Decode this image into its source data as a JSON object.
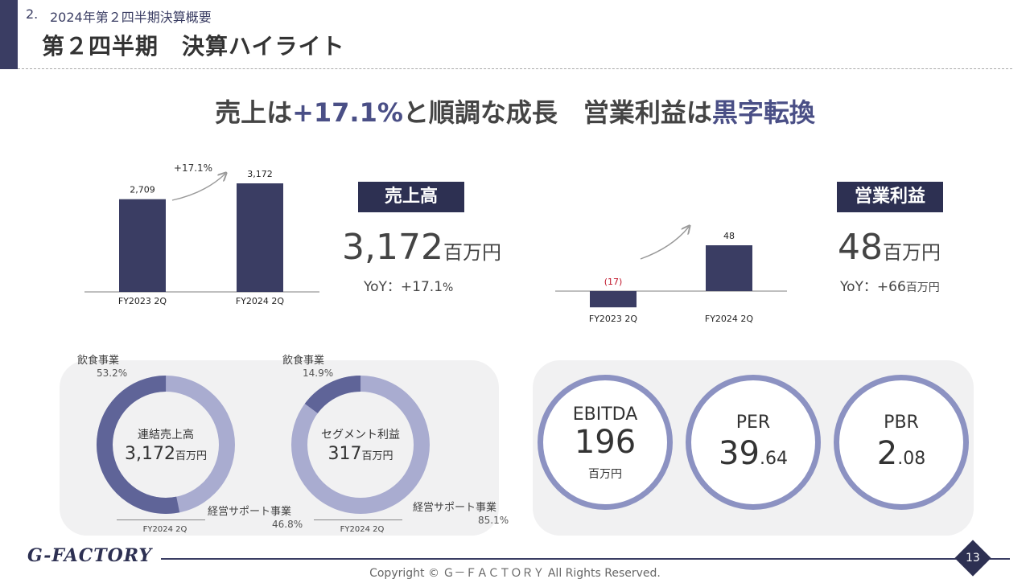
{
  "header": {
    "section_number": "2.",
    "section_title": "2024年第２四半期決算概要",
    "page_title": "第２四半期　決算ハイライト"
  },
  "headline": {
    "part1": "売上は",
    "highlight1": "+17.1%",
    "part2": "と順調な成長　営業利益は",
    "highlight2": "黒字転換"
  },
  "sales": {
    "tag": "売上高",
    "value": "3,172",
    "unit": "百万円",
    "yoy_label": "YoY：",
    "yoy_value": "+17.1",
    "yoy_unit": "%"
  },
  "operating_profit": {
    "tag": "営業利益",
    "value": "48",
    "unit": "百万円",
    "yoy_label": "YoY：",
    "yoy_value": "+66",
    "yoy_unit": "百万円"
  },
  "chart_data": [
    {
      "type": "bar",
      "categories": [
        "FY2023 2Q",
        "FY2024 2Q"
      ],
      "values": [
        2709,
        3172
      ],
      "value_labels": [
        "2,709",
        "3,172"
      ],
      "annotation": "+17.1%",
      "ylim": [
        0,
        3500
      ],
      "color": "#3a3d63"
    },
    {
      "type": "bar",
      "categories": [
        "FY2023 2Q",
        "FY2024 2Q"
      ],
      "values": [
        -17,
        48
      ],
      "value_labels": [
        "(17)",
        "48"
      ],
      "ylim": [
        -17,
        48
      ],
      "color": "#3a3d63",
      "negative_label_color": "#c0152a"
    },
    {
      "type": "pie",
      "categories": [
        "飲食事業",
        "経営サポート事業"
      ],
      "values": [
        53.2,
        46.8
      ],
      "colors": [
        "#5f6498",
        "#a9acd0"
      ],
      "center_label": "連結売上高",
      "center_value": "3,172",
      "center_unit": "百万円",
      "caption": "FY2024 2Q"
    },
    {
      "type": "pie",
      "categories": [
        "飲食事業",
        "経営サポート事業"
      ],
      "values": [
        14.9,
        85.1
      ],
      "colors": [
        "#5f6498",
        "#a9acd0"
      ],
      "center_label": "セグメント利益",
      "center_value": "317",
      "center_unit": "百万円",
      "caption": "FY2024 2Q"
    }
  ],
  "donut1": {
    "food_label": "飲食事業",
    "food_pct": "53.2%",
    "support_label": "経営サポート事業",
    "support_pct": "46.8%"
  },
  "donut2": {
    "food_label": "飲食事業",
    "food_pct": "14.9%",
    "support_label": "経営サポート事業",
    "support_pct": "85.1%"
  },
  "kpis": [
    {
      "name": "EBITDA",
      "int": "196",
      "dec": "",
      "unit": "百万円"
    },
    {
      "name": "PER",
      "int": "39",
      "dec": ".64",
      "unit": ""
    },
    {
      "name": "PBR",
      "int": "2",
      "dec": ".08",
      "unit": ""
    }
  ],
  "footer": {
    "logo": "G-FACTORY",
    "copyright": "Copyright © Ｇ－ＦＡＣＴＯＲＹ All Rights Reserved.",
    "page_number": "13"
  }
}
